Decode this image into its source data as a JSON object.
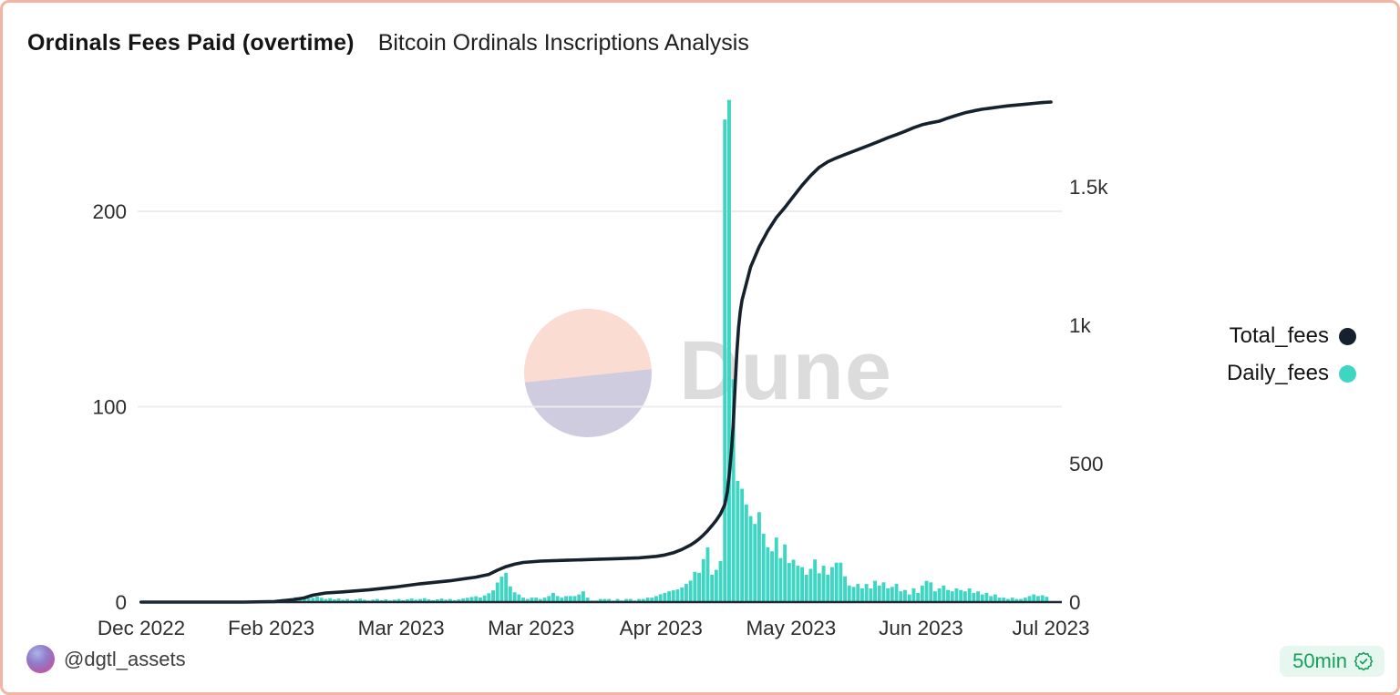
{
  "header": {
    "title": "Ordinals Fees Paid (overtime)",
    "subtitle": "Bitcoin Ordinals Inscriptions Analysis"
  },
  "legend": [
    {
      "label": "Total_fees"
    },
    {
      "label": "Daily_fees"
    }
  ],
  "watermark": {
    "wordmark": "Dune"
  },
  "footer": {
    "handle": "@dgtl_assets",
    "badge": {
      "label": "50min",
      "icon": "verified-check-icon",
      "text_color": "#17a05b",
      "bg_color": "#e5f7ee"
    }
  },
  "colors": {
    "total_fees_line": "#15222e",
    "daily_fees_bar": "#3ed6c3",
    "grid": "#ececec",
    "axis_baseline": "#1d2936",
    "tick_text": "#2d2d2d",
    "card_border": "#f2b4a3"
  },
  "chart_data": {
    "type": "combo",
    "title": "Ordinals Fees Paid (overtime)",
    "subtitle": "Bitcoin Ordinals Inscriptions Analysis",
    "legend_position": "right",
    "grid": "horizontal-only",
    "x_axis": {
      "tick_labels": [
        "Dec 2022",
        "Feb 2023",
        "Mar 2023",
        "Mar 2023",
        "Apr 2023",
        "May 2023",
        "Jun 2023",
        "Jul 2023"
      ],
      "days_total": 212
    },
    "left_axis": {
      "tick_values": [
        0,
        100,
        200
      ],
      "tick_labels": [
        "0",
        "100",
        "200"
      ],
      "range": [
        0,
        236
      ],
      "grid_values": [
        100,
        200
      ]
    },
    "right_axis": {
      "tick_values": [
        0,
        500,
        1000,
        1500
      ],
      "tick_labels": [
        "0",
        "500",
        "1k",
        "1.5k"
      ],
      "range": [
        0,
        1810
      ]
    },
    "series": [
      {
        "name": "Daily_fees",
        "type": "bar",
        "axis": "left",
        "color": "#3ed6c3",
        "values": [
          0,
          0,
          0,
          0,
          0,
          0,
          0,
          0,
          0,
          0,
          0,
          0,
          0,
          0,
          0,
          0,
          0,
          0,
          0,
          0,
          0,
          0,
          0,
          0,
          0,
          0,
          0,
          0,
          0,
          0,
          0.4,
          0.8,
          1.2,
          1.6,
          1.2,
          2,
          2.5,
          1.8,
          1.4,
          1.8,
          2.2,
          2.8,
          2.2,
          1.6,
          2,
          1.4,
          1.8,
          1.2,
          1.6,
          1,
          1.4,
          1.8,
          1.2,
          0.8,
          1.2,
          1.6,
          1,
          1.4,
          0.8,
          1.2,
          1.6,
          1,
          1.4,
          1.8,
          1.2,
          1.6,
          2,
          1.4,
          1,
          1.4,
          1.8,
          1.2,
          1.6,
          1,
          1.4,
          1.8,
          2.2,
          2.6,
          3,
          2.4,
          3.4,
          4.5,
          6,
          10,
          13,
          15,
          8,
          5,
          3.9,
          2.3,
          1.6,
          2.3,
          2.3,
          1.6,
          2.3,
          3.1,
          4.7,
          3.1,
          2.3,
          3.1,
          3.1,
          3.1,
          3.9,
          5.5,
          2.3,
          0.8,
          0.8,
          1.6,
          1.6,
          1.6,
          0.8,
          1.6,
          0.8,
          1.6,
          1.6,
          0.8,
          1.6,
          1.6,
          2.3,
          2.3,
          3.1,
          4,
          4.7,
          5.5,
          6,
          6.5,
          7.5,
          9.3,
          11,
          15.5,
          15,
          22,
          28,
          14,
          16.5,
          21,
          247,
          257,
          114,
          62,
          58,
          50,
          44,
          40,
          46,
          35,
          28,
          26,
          33,
          22.5,
          29.5,
          20,
          21.7,
          18.6,
          17.9,
          14,
          17,
          21.8,
          14.8,
          18.6,
          14,
          17.9,
          20.2,
          20.2,
          13.2,
          8.5,
          7.8,
          9.3,
          7,
          9.3,
          7,
          10.9,
          8.5,
          10.1,
          7,
          7.8,
          9.3,
          5.5,
          6.2,
          3.9,
          7,
          4.7,
          8.5,
          10.9,
          10.1,
          5.5,
          7,
          8.5,
          6.2,
          5.5,
          7,
          6.2,
          5.5,
          7,
          4.7,
          5.5,
          3.9,
          4.7,
          3.1,
          3.9,
          2.3,
          2.3,
          1.6,
          2.3,
          1.6,
          1.6,
          2.3,
          3.1,
          3.9,
          3.1,
          3.5,
          2.7
        ]
      },
      {
        "name": "Total_fees",
        "type": "line",
        "axis": "right",
        "color": "#15222e",
        "points": [
          [
            0,
            0
          ],
          [
            24,
            0
          ],
          [
            31,
            2
          ],
          [
            35,
            8
          ],
          [
            38,
            15
          ],
          [
            40,
            25
          ],
          [
            43,
            33
          ],
          [
            47,
            37
          ],
          [
            53,
            44
          ],
          [
            59,
            54
          ],
          [
            65,
            66
          ],
          [
            72,
            77
          ],
          [
            78,
            90
          ],
          [
            81,
            100
          ],
          [
            83,
            115
          ],
          [
            85,
            128
          ],
          [
            87,
            137
          ],
          [
            89,
            143
          ],
          [
            93,
            148
          ],
          [
            99,
            151
          ],
          [
            105,
            154
          ],
          [
            111,
            157
          ],
          [
            116,
            160
          ],
          [
            120,
            165
          ],
          [
            122,
            170
          ],
          [
            124,
            178
          ],
          [
            126,
            190
          ],
          [
            128,
            206
          ],
          [
            129,
            216
          ],
          [
            130,
            228
          ],
          [
            131,
            242
          ],
          [
            132,
            258
          ],
          [
            133,
            276
          ],
          [
            134,
            295
          ],
          [
            135,
            318
          ],
          [
            136,
            352
          ],
          [
            136.6,
            400
          ],
          [
            137.1,
            470
          ],
          [
            137.6,
            560
          ],
          [
            138,
            650
          ],
          [
            138.4,
            780
          ],
          [
            138.8,
            900
          ],
          [
            139.2,
            990
          ],
          [
            139.6,
            1050
          ],
          [
            140,
            1090
          ],
          [
            141,
            1150
          ],
          [
            142,
            1210
          ],
          [
            144,
            1283
          ],
          [
            146,
            1340
          ],
          [
            148,
            1388
          ],
          [
            150,
            1425
          ],
          [
            152,
            1465
          ],
          [
            154,
            1505
          ],
          [
            156,
            1540
          ],
          [
            158,
            1570
          ],
          [
            160,
            1590
          ],
          [
            162,
            1604
          ],
          [
            164,
            1616
          ],
          [
            166,
            1628
          ],
          [
            168,
            1640
          ],
          [
            170,
            1652
          ],
          [
            172,
            1664
          ],
          [
            174,
            1677
          ],
          [
            176,
            1688
          ],
          [
            178,
            1700
          ],
          [
            180,
            1713
          ],
          [
            182,
            1724
          ],
          [
            184,
            1731
          ],
          [
            186,
            1737
          ],
          [
            188,
            1748
          ],
          [
            190,
            1758
          ],
          [
            192,
            1767
          ],
          [
            194,
            1774
          ],
          [
            196,
            1780
          ],
          [
            198,
            1784
          ],
          [
            200,
            1788
          ],
          [
            202,
            1792
          ],
          [
            204,
            1795
          ],
          [
            206,
            1798
          ],
          [
            208,
            1801
          ],
          [
            210,
            1804
          ],
          [
            212,
            1806
          ]
        ]
      }
    ]
  }
}
